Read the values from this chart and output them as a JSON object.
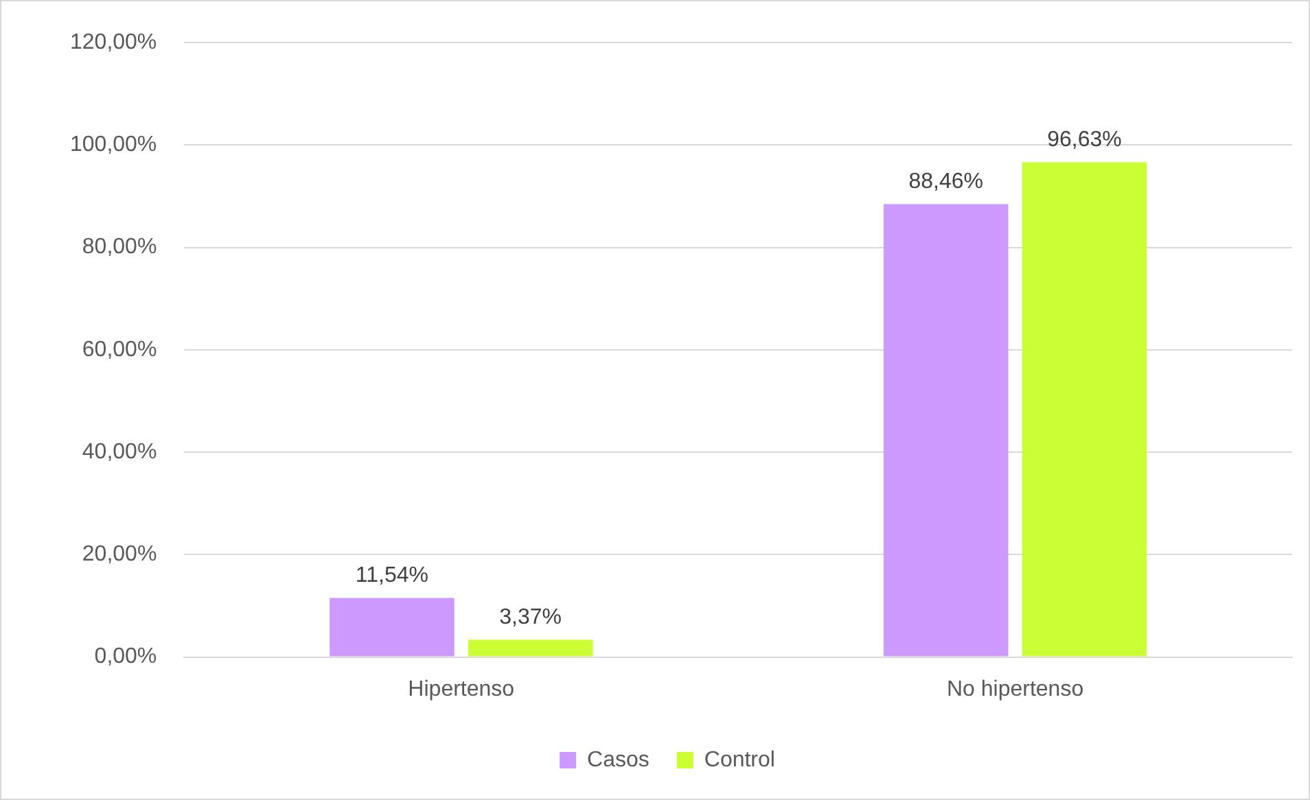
{
  "chart_data": {
    "type": "bar",
    "categories": [
      "Hipertenso",
      "No hipertenso"
    ],
    "series": [
      {
        "name": "Casos",
        "color": "#cc99ff",
        "values": [
          11.54,
          88.46
        ],
        "value_labels": [
          "11,54%",
          "88,46%"
        ]
      },
      {
        "name": "Control",
        "color": "#ccff33",
        "values": [
          3.37,
          96.63
        ],
        "value_labels": [
          "3,37%",
          "96,63%"
        ]
      }
    ],
    "ylim": [
      0,
      120
    ],
    "yticks": [
      {
        "value": 0,
        "label": "0,00%"
      },
      {
        "value": 20,
        "label": "20,00%"
      },
      {
        "value": 40,
        "label": "40,00%"
      },
      {
        "value": 60,
        "label": "60,00%"
      },
      {
        "value": 80,
        "label": "80,00%"
      },
      {
        "value": 100,
        "label": "100,00%"
      },
      {
        "value": 120,
        "label": "120,00%"
      }
    ],
    "grid": "y",
    "legend": "bottom"
  }
}
